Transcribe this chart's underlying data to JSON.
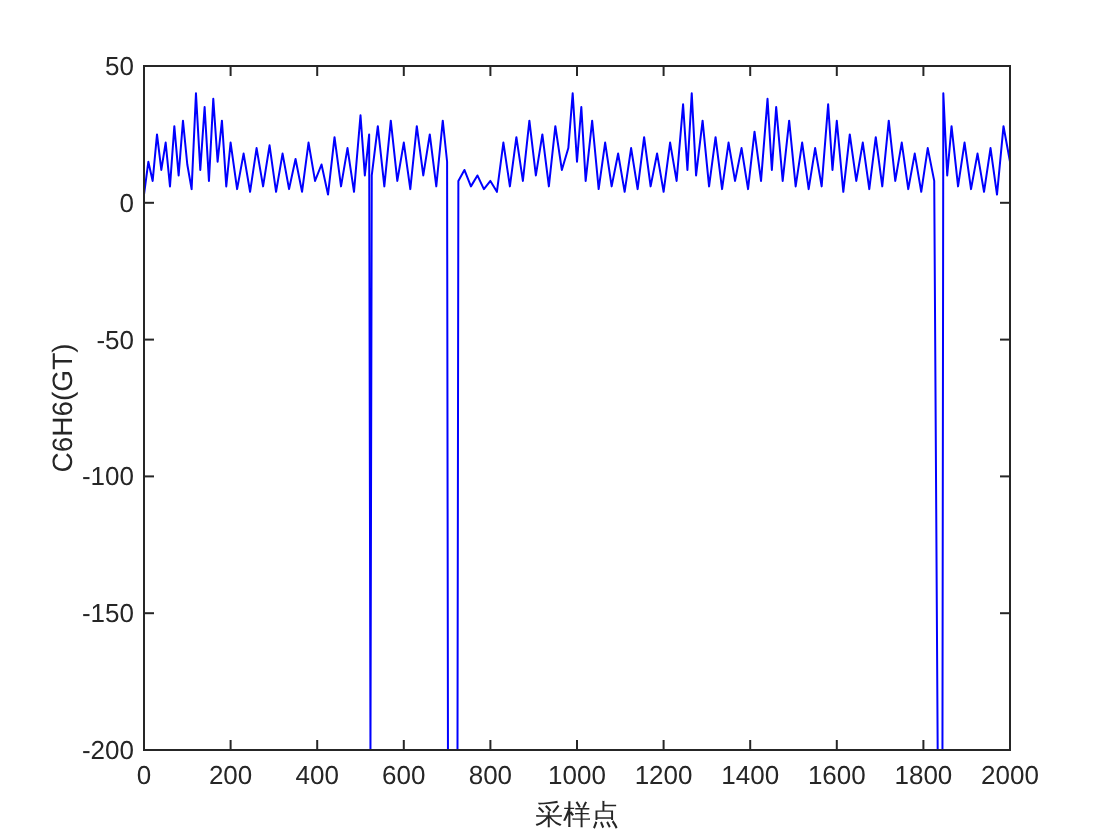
{
  "chart_data": {
    "type": "line",
    "xlabel": "采样点",
    "ylabel": "C6H6(GT)",
    "color": "#0000ff",
    "xlim": [
      0,
      2000
    ],
    "ylim": [
      -200,
      50
    ],
    "xticks": [
      0,
      200,
      400,
      600,
      800,
      1000,
      1200,
      1400,
      1600,
      1800,
      2000
    ],
    "yticks": [
      -200,
      -150,
      -100,
      -50,
      0,
      50
    ],
    "x": [
      0,
      10,
      20,
      30,
      40,
      50,
      60,
      70,
      80,
      90,
      100,
      110,
      120,
      130,
      140,
      150,
      160,
      170,
      180,
      190,
      200,
      215,
      230,
      245,
      260,
      275,
      290,
      305,
      320,
      335,
      350,
      365,
      380,
      395,
      410,
      425,
      440,
      455,
      470,
      485,
      500,
      510,
      520,
      523,
      526,
      540,
      555,
      570,
      585,
      600,
      615,
      630,
      645,
      660,
      675,
      690,
      700,
      702,
      724,
      726,
      740,
      755,
      770,
      785,
      800,
      815,
      830,
      845,
      860,
      875,
      890,
      905,
      920,
      935,
      950,
      965,
      980,
      990,
      1000,
      1010,
      1020,
      1035,
      1050,
      1065,
      1080,
      1095,
      1110,
      1125,
      1140,
      1155,
      1170,
      1185,
      1200,
      1215,
      1230,
      1245,
      1255,
      1265,
      1275,
      1290,
      1305,
      1320,
      1335,
      1350,
      1365,
      1380,
      1395,
      1410,
      1425,
      1440,
      1450,
      1460,
      1475,
      1490,
      1505,
      1520,
      1535,
      1550,
      1565,
      1580,
      1590,
      1600,
      1615,
      1630,
      1645,
      1660,
      1675,
      1690,
      1705,
      1720,
      1735,
      1750,
      1765,
      1780,
      1795,
      1810,
      1825,
      1833,
      1844,
      1846,
      1855,
      1865,
      1880,
      1895,
      1910,
      1925,
      1940,
      1955,
      1970,
      1985,
      2000
    ],
    "values": [
      3,
      15,
      8,
      25,
      12,
      22,
      6,
      28,
      10,
      30,
      14,
      5,
      40,
      12,
      35,
      8,
      38,
      15,
      30,
      6,
      22,
      5,
      18,
      4,
      20,
      6,
      21,
      4,
      18,
      5,
      16,
      4,
      22,
      8,
      14,
      3,
      24,
      6,
      20,
      4,
      32,
      10,
      25,
      -200,
      10,
      28,
      6,
      30,
      8,
      22,
      5,
      28,
      10,
      25,
      6,
      30,
      15,
      -200,
      -200,
      8,
      12,
      6,
      10,
      5,
      8,
      4,
      22,
      6,
      24,
      8,
      30,
      10,
      25,
      6,
      28,
      12,
      20,
      40,
      15,
      35,
      8,
      30,
      5,
      22,
      6,
      18,
      4,
      20,
      5,
      24,
      6,
      18,
      4,
      22,
      8,
      36,
      12,
      40,
      10,
      30,
      6,
      24,
      5,
      22,
      8,
      20,
      5,
      26,
      8,
      38,
      12,
      35,
      8,
      30,
      6,
      22,
      5,
      20,
      6,
      36,
      12,
      30,
      4,
      25,
      8,
      22,
      5,
      24,
      6,
      30,
      8,
      22,
      5,
      18,
      4,
      20,
      8,
      -200,
      -200,
      40,
      10,
      28,
      6,
      22,
      5,
      18,
      4,
      20,
      3,
      28,
      15
    ]
  }
}
